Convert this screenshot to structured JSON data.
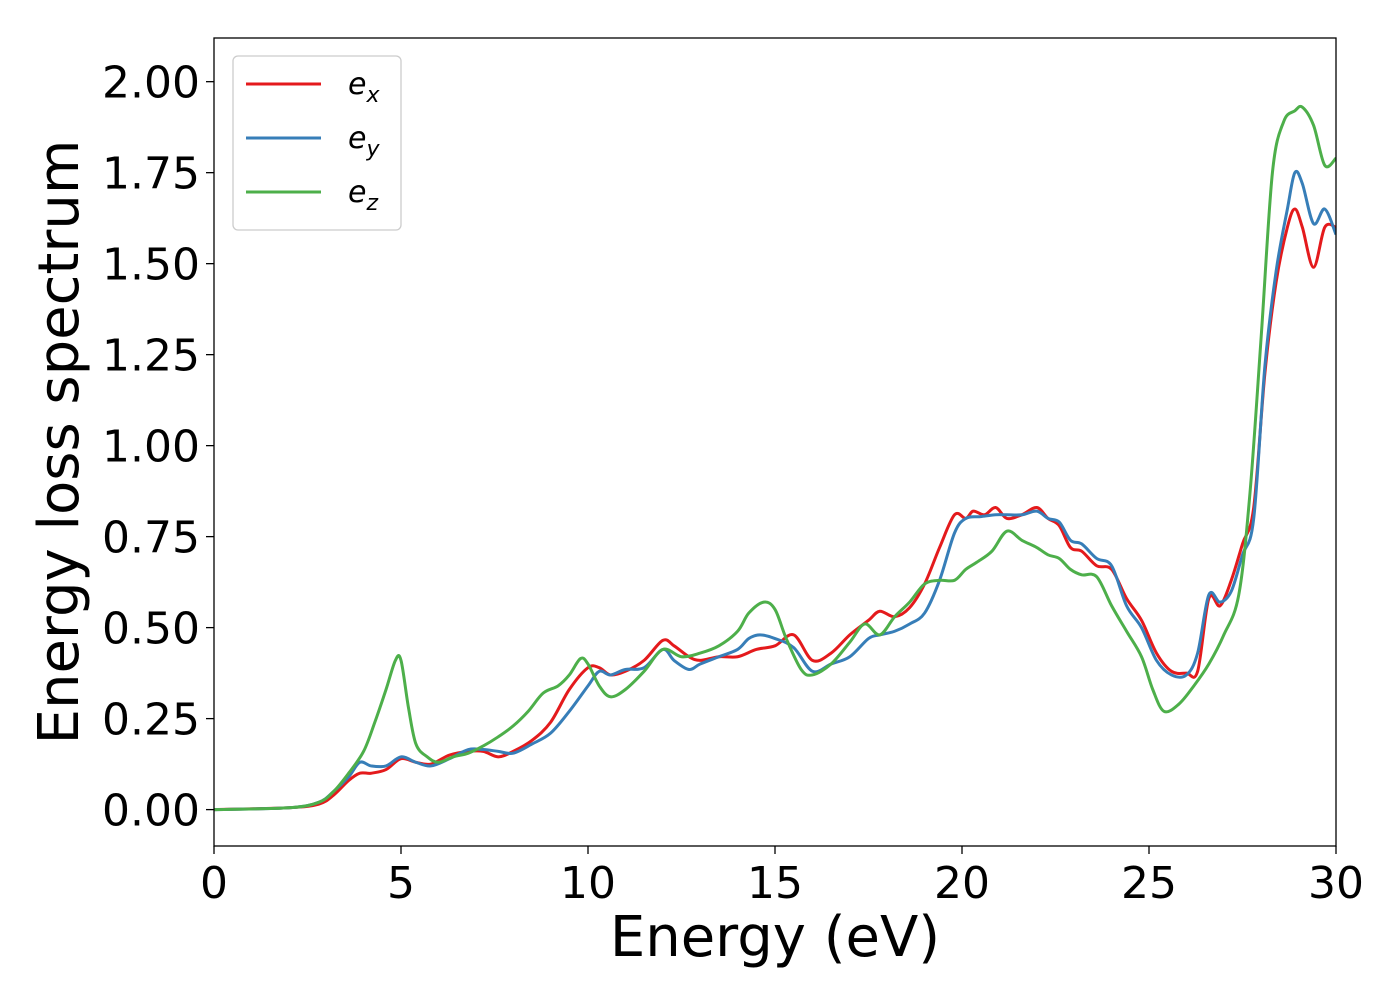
{
  "chart_data": {
    "type": "line",
    "xlabel": "Energy (eV)",
    "ylabel": "Energy loss spectrum",
    "xlim": [
      0,
      30
    ],
    "ylim": [
      -0.1,
      2.12
    ],
    "xticks": [
      0,
      5,
      10,
      15,
      20,
      25,
      30
    ],
    "xtick_labels": [
      "0",
      "5",
      "10",
      "15",
      "20",
      "25",
      "30"
    ],
    "yticks": [
      0,
      0.25,
      0.5,
      0.75,
      1.0,
      1.25,
      1.5,
      1.75,
      2.0
    ],
    "ytick_labels": [
      "0.00",
      "0.25",
      "0.50",
      "0.75",
      "1.00",
      "1.25",
      "1.50",
      "1.75",
      "2.00"
    ],
    "grid": false,
    "legend_position": "upper-left",
    "series": [
      {
        "name": "e_x",
        "label_main": "e",
        "label_sub": "x",
        "color": "#e41a1c",
        "x": [
          0,
          2,
          2.8,
          3.2,
          3.6,
          3.9,
          4.2,
          4.6,
          5.0,
          5.4,
          5.8,
          6.3,
          6.8,
          7.2,
          7.6,
          8.0,
          8.5,
          9.0,
          9.5,
          10.0,
          10.3,
          10.6,
          11.0,
          11.5,
          12.0,
          12.3,
          12.7,
          13.0,
          13.5,
          14.0,
          14.5,
          15.0,
          15.5,
          16.0,
          16.5,
          17.0,
          17.5,
          17.8,
          18.2,
          18.6,
          19.0,
          19.4,
          19.8,
          20.1,
          20.3,
          20.6,
          20.9,
          21.2,
          21.6,
          22.0,
          22.3,
          22.6,
          22.9,
          23.2,
          23.6,
          24.0,
          24.4,
          24.8,
          25.2,
          25.6,
          26.0,
          26.3,
          26.6,
          26.9,
          27.2,
          27.5,
          27.8,
          28.1,
          28.4,
          28.7,
          28.9,
          29.1,
          29.4,
          29.7,
          30
        ],
        "y": [
          0,
          0.005,
          0.015,
          0.04,
          0.08,
          0.1,
          0.1,
          0.11,
          0.14,
          0.13,
          0.125,
          0.15,
          0.16,
          0.16,
          0.145,
          0.16,
          0.19,
          0.24,
          0.33,
          0.39,
          0.39,
          0.37,
          0.38,
          0.41,
          0.465,
          0.45,
          0.42,
          0.41,
          0.42,
          0.42,
          0.44,
          0.45,
          0.48,
          0.41,
          0.43,
          0.48,
          0.52,
          0.545,
          0.53,
          0.555,
          0.62,
          0.72,
          0.81,
          0.8,
          0.82,
          0.81,
          0.83,
          0.8,
          0.81,
          0.83,
          0.8,
          0.78,
          0.72,
          0.71,
          0.67,
          0.66,
          0.58,
          0.52,
          0.43,
          0.38,
          0.375,
          0.38,
          0.58,
          0.56,
          0.63,
          0.73,
          0.83,
          1.2,
          1.45,
          1.6,
          1.65,
          1.6,
          1.49,
          1.6,
          1.6
        ]
      },
      {
        "name": "e_y",
        "label_main": "e",
        "label_sub": "y",
        "color": "#377eb8",
        "x": [
          0,
          2,
          2.8,
          3.2,
          3.6,
          3.9,
          4.2,
          4.6,
          5.0,
          5.4,
          5.8,
          6.3,
          6.8,
          7.2,
          7.6,
          8.0,
          8.5,
          9.0,
          9.5,
          10.0,
          10.3,
          10.6,
          11.0,
          11.5,
          12.0,
          12.3,
          12.7,
          13.0,
          13.5,
          14.0,
          14.3,
          14.6,
          15.0,
          15.5,
          16.0,
          16.5,
          17.0,
          17.5,
          17.8,
          18.2,
          18.6,
          19.0,
          19.4,
          19.8,
          20.1,
          20.5,
          20.9,
          21.2,
          21.6,
          22.0,
          22.3,
          22.6,
          22.9,
          23.2,
          23.6,
          24.0,
          24.4,
          24.8,
          25.2,
          25.6,
          26.0,
          26.3,
          26.6,
          26.9,
          27.2,
          27.5,
          27.8,
          28.1,
          28.4,
          28.7,
          28.9,
          29.1,
          29.4,
          29.7,
          30
        ],
        "y": [
          0,
          0.005,
          0.02,
          0.05,
          0.09,
          0.13,
          0.12,
          0.12,
          0.145,
          0.13,
          0.12,
          0.14,
          0.165,
          0.165,
          0.16,
          0.155,
          0.18,
          0.21,
          0.27,
          0.34,
          0.38,
          0.37,
          0.385,
          0.39,
          0.44,
          0.41,
          0.385,
          0.4,
          0.42,
          0.44,
          0.47,
          0.48,
          0.47,
          0.445,
          0.38,
          0.4,
          0.42,
          0.47,
          0.48,
          0.49,
          0.51,
          0.54,
          0.63,
          0.76,
          0.8,
          0.805,
          0.81,
          0.81,
          0.81,
          0.82,
          0.8,
          0.79,
          0.74,
          0.73,
          0.69,
          0.67,
          0.56,
          0.5,
          0.41,
          0.37,
          0.37,
          0.43,
          0.59,
          0.57,
          0.6,
          0.7,
          0.8,
          1.22,
          1.48,
          1.65,
          1.75,
          1.72,
          1.61,
          1.65,
          1.58
        ]
      },
      {
        "name": "e_z",
        "label_main": "e",
        "label_sub": "z",
        "color": "#4daf4a",
        "x": [
          0,
          2,
          2.8,
          3.2,
          3.6,
          4.0,
          4.3,
          4.6,
          4.85,
          5.0,
          5.2,
          5.4,
          5.7,
          6.0,
          6.4,
          6.8,
          7.2,
          7.6,
          8.0,
          8.4,
          8.8,
          9.2,
          9.5,
          9.8,
          10.0,
          10.3,
          10.6,
          11.0,
          11.5,
          12.0,
          12.5,
          13.0,
          13.5,
          14.0,
          14.3,
          14.7,
          15.0,
          15.3,
          15.7,
          16.0,
          16.5,
          17.0,
          17.4,
          17.8,
          18.2,
          18.6,
          19.0,
          19.4,
          19.8,
          20.1,
          20.4,
          20.8,
          21.2,
          21.6,
          22.0,
          22.3,
          22.6,
          22.9,
          23.2,
          23.6,
          24.0,
          24.4,
          24.8,
          25.1,
          25.4,
          25.8,
          26.2,
          26.6,
          27.0,
          27.4,
          27.7,
          28.0,
          28.3,
          28.6,
          28.9,
          29.1,
          29.4,
          29.7,
          30
        ],
        "y": [
          0,
          0.005,
          0.02,
          0.05,
          0.1,
          0.16,
          0.24,
          0.33,
          0.41,
          0.41,
          0.28,
          0.18,
          0.145,
          0.13,
          0.145,
          0.155,
          0.175,
          0.2,
          0.23,
          0.27,
          0.32,
          0.34,
          0.37,
          0.415,
          0.4,
          0.34,
          0.31,
          0.33,
          0.38,
          0.44,
          0.42,
          0.43,
          0.45,
          0.49,
          0.54,
          0.57,
          0.55,
          0.47,
          0.385,
          0.37,
          0.4,
          0.46,
          0.51,
          0.48,
          0.53,
          0.57,
          0.62,
          0.63,
          0.63,
          0.66,
          0.68,
          0.71,
          0.765,
          0.74,
          0.72,
          0.7,
          0.69,
          0.66,
          0.645,
          0.64,
          0.56,
          0.49,
          0.42,
          0.33,
          0.27,
          0.29,
          0.34,
          0.4,
          0.48,
          0.59,
          0.87,
          1.3,
          1.75,
          1.89,
          1.92,
          1.93,
          1.88,
          1.77,
          1.79
        ]
      }
    ]
  }
}
